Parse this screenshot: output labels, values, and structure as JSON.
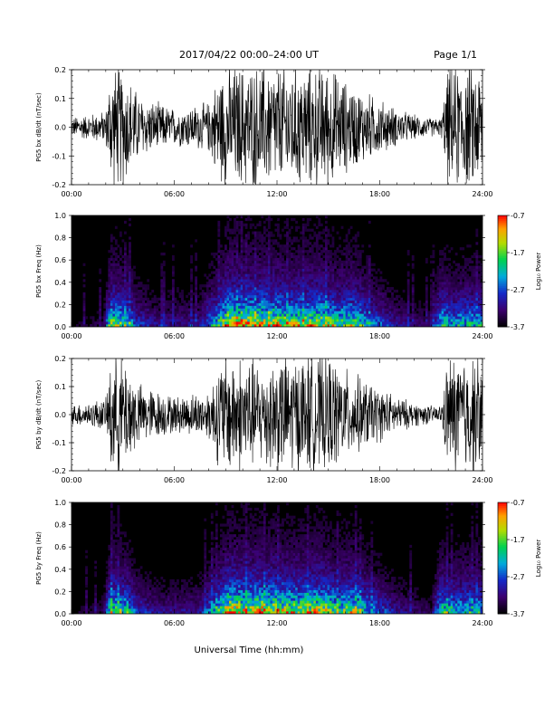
{
  "header": {
    "date_range": "2017/04/22   00:00–24:00 UT",
    "page": "Page 1/1"
  },
  "x_axis": {
    "title": "Universal Time (hh:mm)",
    "ticks": [
      "00:00",
      "06:00",
      "12:00",
      "18:00",
      "24:00"
    ]
  },
  "colorbar": {
    "label": "Log₁₀ Power",
    "ticks": [
      "-0.7",
      "-1.7",
      "-2.7",
      "-3.7"
    ]
  },
  "chart_data": [
    {
      "type": "line",
      "ylabel": "PG5 bx dB/dt (nT/sec)",
      "x_range_hours": [
        0,
        24
      ],
      "ylim": [
        -0.2,
        0.2
      ],
      "y_ticks": [
        "0.2",
        "0.1",
        "0.0",
        "-0.1",
        "-0.2"
      ],
      "envelope": {
        "x_hours": [
          0,
          0.5,
          1,
          1.5,
          2,
          2.3,
          3,
          3.5,
          4,
          5,
          6,
          7,
          8,
          8.5,
          9,
          9.5,
          10,
          11,
          12,
          13,
          14,
          15,
          16,
          17,
          18,
          19,
          20,
          21,
          21.6,
          22,
          23,
          24
        ],
        "amplitude": [
          0.03,
          0.04,
          0.04,
          0.05,
          0.05,
          0.2,
          0.2,
          0.15,
          0.1,
          0.08,
          0.06,
          0.07,
          0.08,
          0.16,
          0.2,
          0.2,
          0.2,
          0.2,
          0.2,
          0.2,
          0.2,
          0.2,
          0.15,
          0.12,
          0.09,
          0.06,
          0.04,
          0.03,
          0.03,
          0.2,
          0.2,
          0.2
        ]
      }
    },
    {
      "type": "heatmap",
      "ylabel": "PG5 bx Freq (Hz)",
      "x_range_hours": [
        0,
        24
      ],
      "ylim": [
        0.0,
        1.0
      ],
      "y_ticks": [
        "1.0",
        "0.8",
        "0.6",
        "0.4",
        "0.2",
        "0.0"
      ],
      "color_range_log10": [
        -3.7,
        -0.7
      ]
    },
    {
      "type": "line",
      "ylabel": "PG5 by dB/dt (nT/sec)",
      "x_range_hours": [
        0,
        24
      ],
      "ylim": [
        -0.2,
        0.2
      ],
      "y_ticks": [
        "0.2",
        "0.1",
        "0.0",
        "-0.1",
        "-0.2"
      ],
      "envelope": {
        "x_hours": [
          0,
          0.5,
          1,
          1.5,
          2,
          2.3,
          3,
          3.5,
          4,
          5,
          6,
          7,
          8,
          8.5,
          9,
          9.5,
          10,
          11,
          12,
          13,
          14,
          15,
          16,
          17,
          18,
          19,
          20,
          21,
          21.6,
          22,
          23,
          24
        ],
        "amplitude": [
          0.03,
          0.04,
          0.04,
          0.05,
          0.05,
          0.2,
          0.2,
          0.15,
          0.1,
          0.08,
          0.06,
          0.07,
          0.08,
          0.16,
          0.2,
          0.2,
          0.2,
          0.17,
          0.2,
          0.2,
          0.2,
          0.2,
          0.15,
          0.12,
          0.09,
          0.06,
          0.04,
          0.03,
          0.03,
          0.2,
          0.2,
          0.2
        ]
      }
    },
    {
      "type": "heatmap",
      "ylabel": "PG5 by Freq (Hz)",
      "x_range_hours": [
        0,
        24
      ],
      "ylim": [
        0.0,
        1.0
      ],
      "y_ticks": [
        "1.0",
        "0.8",
        "0.6",
        "0.4",
        "0.2",
        "0.0"
      ],
      "color_range_log10": [
        -3.7,
        -0.7
      ]
    }
  ]
}
